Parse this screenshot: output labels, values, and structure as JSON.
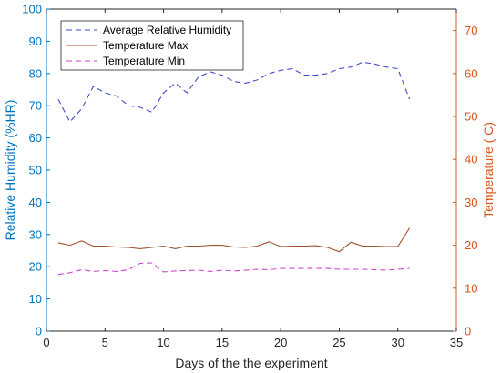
{
  "chart_data": {
    "type": "line",
    "title": "",
    "xlabel": "Days of the the experiment",
    "ylabel_left": "Relative Humidity (%HR)",
    "ylabel_right": "Temperature ( C)",
    "xlim": [
      0,
      35
    ],
    "ylim_left": [
      0,
      100
    ],
    "ylim_right": [
      0,
      75
    ],
    "x_ticks": [
      0,
      5,
      10,
      15,
      20,
      25,
      30,
      35
    ],
    "y_left_ticks": [
      0,
      10,
      20,
      30,
      40,
      50,
      60,
      70,
      80,
      90,
      100
    ],
    "y_right_ticks": [
      0,
      10,
      20,
      30,
      40,
      50,
      60,
      70
    ],
    "grid": false,
    "legend_position": "top-left",
    "colors": {
      "left_axis": "#0072BD",
      "right_axis": "#D95319",
      "humidity": "#3F4CCB",
      "temp_max": "#A0522D",
      "temp_min": "#CC44CC"
    },
    "x": [
      1,
      2,
      3,
      4,
      5,
      6,
      7,
      8,
      9,
      10,
      11,
      12,
      13,
      14,
      15,
      16,
      17,
      18,
      19,
      20,
      21,
      22,
      23,
      24,
      25,
      26,
      27,
      28,
      29,
      30,
      31
    ],
    "series": [
      {
        "name": "Average Relative Humidity",
        "axis": "left",
        "style": "dashed",
        "values": [
          72,
          65,
          69,
          76,
          74,
          73,
          70,
          69.5,
          68,
          74,
          77,
          74,
          79,
          80.5,
          79.5,
          77.5,
          77,
          78,
          80,
          81,
          81.5,
          79.5,
          79.5,
          80,
          81.5,
          82,
          83.5,
          83,
          82,
          81.5,
          72
        ]
      },
      {
        "name": "Temperature Max",
        "axis": "right",
        "style": "solid",
        "values": [
          20.6,
          20.0,
          21.0,
          19.8,
          19.8,
          19.6,
          19.5,
          19.2,
          19.5,
          19.8,
          19.2,
          19.8,
          19.8,
          20.0,
          20.0,
          19.6,
          19.5,
          19.8,
          20.8,
          19.7,
          19.8,
          19.8,
          19.9,
          19.5,
          18.5,
          20.7,
          19.8,
          19.8,
          19.7,
          19.7,
          24.0
        ]
      },
      {
        "name": "Temperature Min",
        "axis": "right",
        "style": "dashed",
        "values": [
          13.2,
          13.6,
          14.3,
          13.9,
          14.1,
          13.9,
          14.3,
          15.8,
          15.9,
          13.8,
          14.0,
          14.1,
          14.2,
          13.9,
          14.2,
          14.0,
          14.2,
          14.4,
          14.3,
          14.6,
          14.6,
          14.6,
          14.6,
          14.6,
          14.4,
          14.4,
          14.4,
          14.3,
          14.2,
          14.4,
          14.6
        ]
      }
    ]
  }
}
